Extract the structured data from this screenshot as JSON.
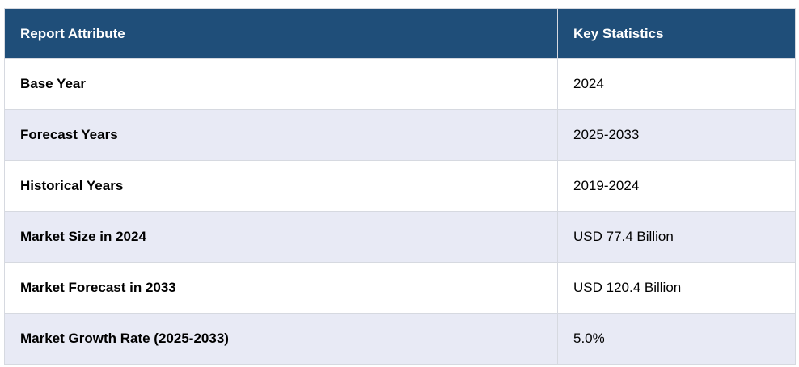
{
  "table": {
    "headers": [
      "Report Attribute",
      "Key Statistics"
    ],
    "rows": [
      {
        "attribute": "Base Year",
        "value": "2024"
      },
      {
        "attribute": "Forecast Years",
        "value": "2025-2033"
      },
      {
        "attribute": "Historical Years",
        "value": "2019-2024"
      },
      {
        "attribute": "Market Size in 2024",
        "value": "USD 77.4 Billion"
      },
      {
        "attribute": "Market Forecast in 2033",
        "value": "USD 120.4 Billion"
      },
      {
        "attribute": "Market Growth Rate (2025-2033)",
        "value": "5.0%"
      }
    ]
  },
  "colors": {
    "header_bg": "#1f4e79",
    "header_text": "#ffffff",
    "row_alt_bg": "#e8eaf5",
    "border": "#d6d9e0"
  }
}
